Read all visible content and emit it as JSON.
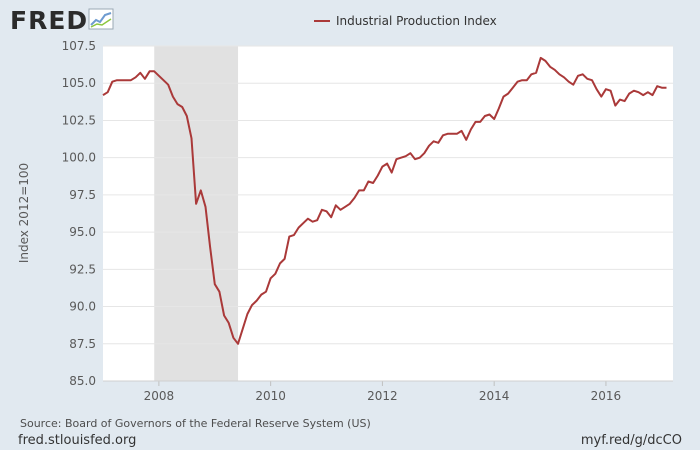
{
  "branding": {
    "logo_text": "FRED",
    "logo_icon": "line-chart-icon",
    "site": "fred.stlouisfed.org",
    "short_link": "myf.red/g/dcCO"
  },
  "source": "Source: Board of Governors of the Federal Reserve System (US)",
  "colors": {
    "background": "#e1e9f0",
    "plot_background": "#ffffff",
    "series": "#aa3939",
    "recession": "#e1e1e1",
    "grid": "#e6e6e6"
  },
  "chart_data": {
    "type": "line",
    "title": "",
    "xlabel": "",
    "ylabel": "Index 2012=100",
    "ylim": [
      85.0,
      107.5
    ],
    "yticks": [
      "85.0",
      "87.5",
      "90.0",
      "92.5",
      "95.0",
      "97.5",
      "100.0",
      "102.5",
      "105.0",
      "107.5"
    ],
    "xticks": [
      "2008",
      "2010",
      "2012",
      "2014",
      "2016"
    ],
    "grid": "horizontal",
    "legend": "top-center",
    "recession_shading": {
      "start": "2007-12",
      "end": "2009-06"
    },
    "series": [
      {
        "name": "Industrial Production Index",
        "color": "#aa3939",
        "start": "2007-01",
        "frequency": "monthly",
        "values": [
          104.2,
          104.4,
          105.1,
          105.2,
          105.2,
          105.2,
          105.2,
          105.4,
          105.7,
          105.3,
          105.8,
          105.8,
          105.5,
          105.2,
          104.9,
          104.1,
          103.6,
          103.4,
          102.8,
          101.3,
          96.9,
          97.8,
          96.7,
          94.0,
          91.5,
          91.0,
          89.4,
          88.9,
          87.9,
          87.5,
          88.5,
          89.5,
          90.1,
          90.4,
          90.8,
          91.0,
          91.9,
          92.2,
          92.9,
          93.2,
          94.7,
          94.8,
          95.3,
          95.6,
          95.9,
          95.7,
          95.8,
          96.5,
          96.4,
          96.0,
          96.8,
          96.5,
          96.7,
          96.9,
          97.3,
          97.8,
          97.8,
          98.4,
          98.3,
          98.8,
          99.4,
          99.6,
          99.0,
          99.9,
          100.0,
          100.1,
          100.3,
          99.9,
          100.0,
          100.3,
          100.8,
          101.1,
          101.0,
          101.5,
          101.6,
          101.6,
          101.6,
          101.8,
          101.2,
          101.9,
          102.4,
          102.4,
          102.8,
          102.9,
          102.6,
          103.3,
          104.1,
          104.3,
          104.7,
          105.1,
          105.2,
          105.2,
          105.6,
          105.7,
          106.7,
          106.5,
          106.1,
          105.9,
          105.6,
          105.4,
          105.1,
          104.9,
          105.5,
          105.6,
          105.3,
          105.2,
          104.6,
          104.1,
          104.6,
          104.5,
          103.5,
          103.9,
          103.8,
          104.3,
          104.5,
          104.4,
          104.2,
          104.4,
          104.2,
          104.8,
          104.7,
          104.7
        ]
      }
    ]
  }
}
